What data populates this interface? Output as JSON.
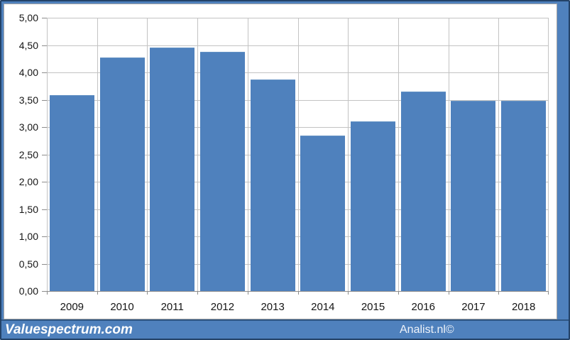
{
  "chart_data": {
    "type": "bar",
    "categories": [
      "2009",
      "2010",
      "2011",
      "2012",
      "2013",
      "2014",
      "2015",
      "2016",
      "2017",
      "2018"
    ],
    "values": [
      3.58,
      4.27,
      4.45,
      4.38,
      3.87,
      2.84,
      3.1,
      3.65,
      3.48,
      3.48
    ],
    "title": "",
    "xlabel": "",
    "ylabel": "",
    "ylim": [
      0,
      5
    ],
    "ytick_step": 0.5,
    "ytick_labels": [
      "0,00",
      "0,50",
      "1,00",
      "1,50",
      "2,00",
      "2,50",
      "3,00",
      "3,50",
      "4,00",
      "4,50",
      "5,00"
    ],
    "grid": true,
    "legend": false,
    "bar_color": "#4f81bd",
    "decimal_separator": ","
  },
  "footer": {
    "brand_left": "Valuespectrum.com",
    "brand_right": "Analist.nl©"
  },
  "colors": {
    "frame": "#4f81bd",
    "frame_dark": "#234268",
    "panel_bg": "#ffffff",
    "panel_border": "#a6a6a6",
    "gridline": "#c3c3c3",
    "axis_line": "#8c8c8c",
    "label_text": "#151515",
    "footer_text": "#ffffff"
  }
}
